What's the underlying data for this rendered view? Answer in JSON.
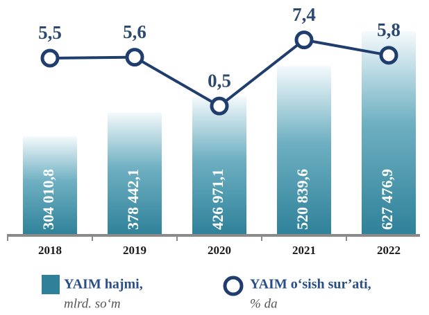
{
  "chart_data": {
    "type": "bar-line",
    "categories": [
      "2018",
      "2019",
      "2020",
      "2021",
      "2022"
    ],
    "series": [
      {
        "name": "YAIM hajmi,",
        "unit": "mlrd. so‘m",
        "color": "#2e8199",
        "values": [
          304010.8,
          378442.1,
          426971.1,
          520839.6,
          627476.9
        ],
        "value_labels": [
          "304 010,8",
          "378 442,1",
          "426 971,1",
          "520 839,6",
          "627 476,9"
        ]
      },
      {
        "name": "YAIM o‘sish sur’ati,",
        "unit": "% da",
        "color": "#1f3e6e",
        "axis": "y2",
        "values": [
          5.5,
          5.6,
          0.5,
          7.4,
          5.8
        ],
        "value_labels": [
          "5,5",
          "5,6",
          "0,5",
          "7,4",
          "5,8"
        ]
      }
    ],
    "ylim": [
      0,
      660000
    ],
    "y2lim": [
      -13,
      9.4
    ]
  }
}
